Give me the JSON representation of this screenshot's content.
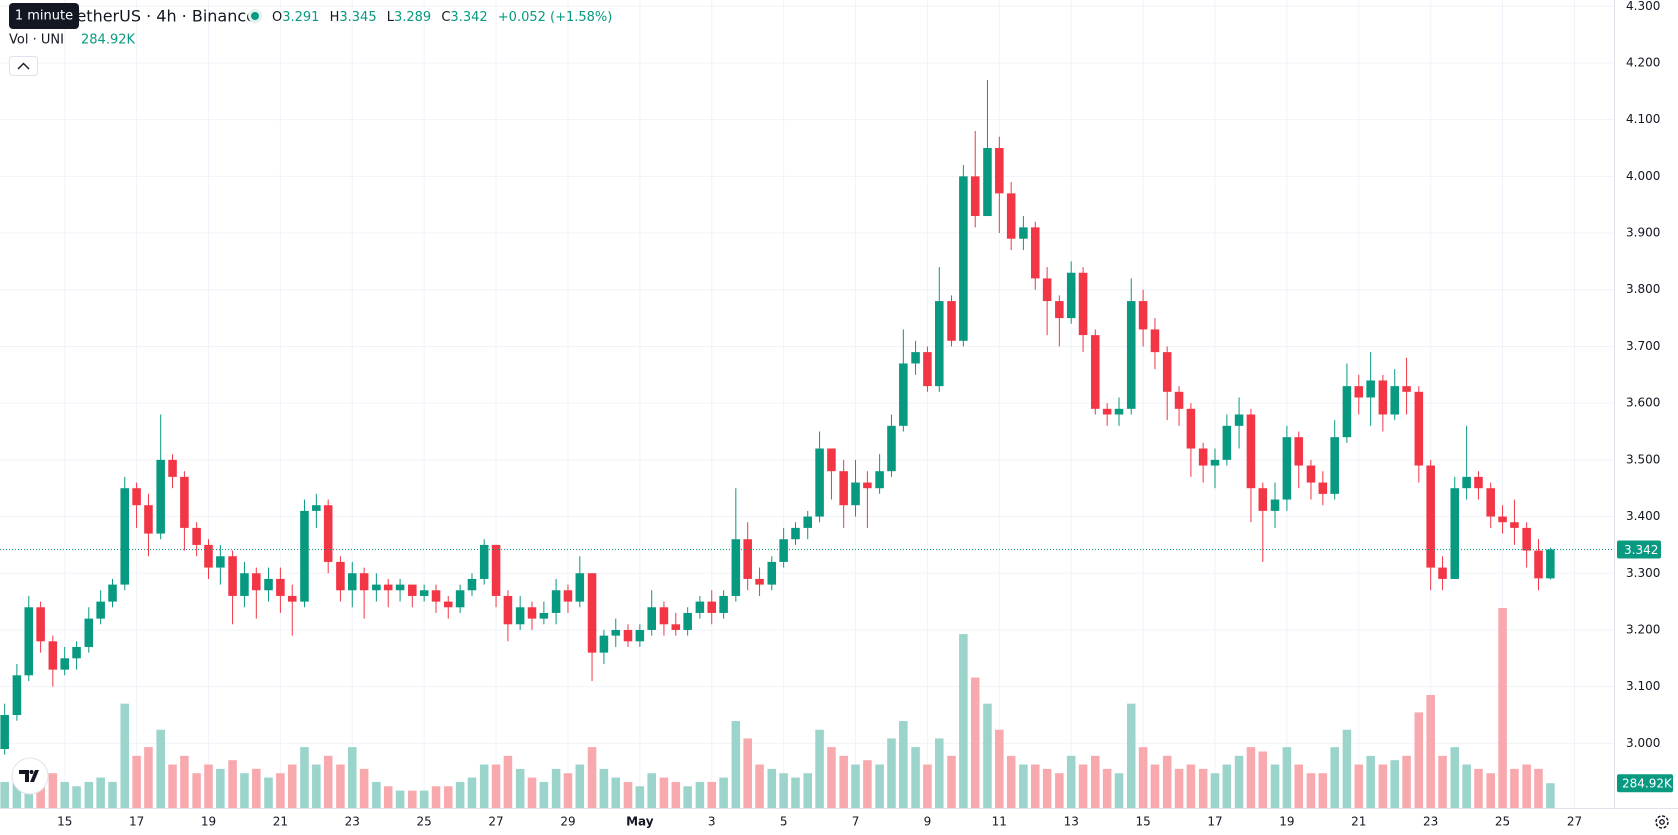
{
  "chart_data": {
    "type": "candlestick",
    "symbol": "UNITetherUS · 4h · Binance",
    "tooltip": "1 minute",
    "ohlc_labels": [
      "O",
      "H",
      "L",
      "C"
    ],
    "change_label": "+0.052 (+1.58%)",
    "volume_title": "Vol · UNI",
    "volume_label": "284.92K",
    "colors": {
      "up": "#089981",
      "down": "#f23645",
      "volume_up": "#9bd4cb",
      "volume_down": "#f7a9ae"
    },
    "grid": true,
    "xlim": [
      13.2,
      58.1
    ],
    "xticks": [
      15,
      17,
      19,
      21,
      23,
      25,
      27,
      29,
      {
        "value": 31,
        "label": "May"
      },
      {
        "value": 33,
        "label": "3"
      },
      {
        "value": 35,
        "label": "5"
      },
      {
        "value": 37,
        "label": "7"
      },
      {
        "value": 39,
        "label": "9"
      },
      {
        "value": 41,
        "label": "11"
      },
      {
        "value": 43,
        "label": "13"
      },
      {
        "value": 45,
        "label": "15"
      },
      {
        "value": 47,
        "label": "17"
      },
      {
        "value": 49,
        "label": "19"
      },
      {
        "value": 51,
        "label": "21"
      },
      {
        "value": 53,
        "label": "23"
      },
      {
        "value": 55,
        "label": "25"
      },
      {
        "value": 57,
        "label": "27"
      }
    ],
    "ylim": [
      2.886,
      4.311
    ],
    "yticks": [
      {
        "value": 3.0,
        "label": "3.000"
      },
      {
        "value": 3.1,
        "label": "3.100"
      },
      {
        "value": 3.2,
        "label": "3.200"
      },
      {
        "value": 3.3,
        "label": "3.300"
      },
      {
        "value": 3.4,
        "label": "3.400"
      },
      {
        "value": 3.5,
        "label": "3.500"
      },
      {
        "value": 3.6,
        "label": "3.600"
      },
      {
        "value": 3.7,
        "label": "3.700"
      },
      {
        "value": 3.8,
        "label": "3.800"
      },
      {
        "value": 3.9,
        "label": "3.900"
      },
      {
        "value": 4.0,
        "label": "4.000"
      },
      {
        "value": 4.1,
        "label": "4.100"
      },
      {
        "value": 4.2,
        "label": "4.200"
      },
      {
        "value": 4.3,
        "label": "4.300"
      }
    ],
    "x": [
      13.33,
      13.67,
      14,
      14.33,
      14.67,
      15,
      15.33,
      15.67,
      16,
      16.33,
      16.67,
      17,
      17.33,
      17.67,
      18,
      18.33,
      18.67,
      19,
      19.33,
      19.67,
      20,
      20.33,
      20.67,
      21,
      21.33,
      21.67,
      22,
      22.33,
      22.67,
      23,
      23.33,
      23.67,
      24,
      24.33,
      24.67,
      25,
      25.33,
      25.67,
      26,
      26.33,
      26.67,
      27,
      27.33,
      27.67,
      28,
      28.33,
      28.67,
      29,
      29.33,
      29.67,
      30,
      30.33,
      30.67,
      31,
      31.33,
      31.67,
      32,
      32.33,
      32.67,
      33,
      33.33,
      33.67,
      34,
      34.33,
      34.67,
      35,
      35.33,
      35.67,
      36,
      36.33,
      36.67,
      37,
      37.33,
      37.67,
      38,
      38.33,
      38.67,
      39,
      39.33,
      39.67,
      40,
      40.33,
      40.67,
      41,
      41.33,
      41.67,
      42,
      42.33,
      42.67,
      43,
      43.33,
      43.67,
      44,
      44.33,
      44.67,
      45,
      45.33,
      45.67,
      46,
      46.33,
      46.67,
      47,
      47.33,
      47.67,
      48,
      48.33,
      48.67,
      49,
      49.33,
      49.67,
      50,
      50.33,
      50.67,
      51,
      51.33,
      51.67,
      52,
      52.33,
      52.67,
      53,
      53.33,
      53.67,
      54,
      54.33,
      54.67,
      55,
      55.33,
      55.67,
      56,
      56.33
    ],
    "open": [
      2.99,
      3.05,
      3.12,
      3.24,
      3.18,
      3.13,
      3.15,
      3.17,
      3.22,
      3.25,
      3.28,
      3.45,
      3.42,
      3.37,
      3.5,
      3.47,
      3.38,
      3.35,
      3.31,
      3.33,
      3.26,
      3.3,
      3.27,
      3.29,
      3.26,
      3.25,
      3.41,
      3.42,
      3.32,
      3.27,
      3.3,
      3.27,
      3.28,
      3.27,
      3.28,
      3.26,
      3.27,
      3.25,
      3.24,
      3.27,
      3.29,
      3.35,
      3.26,
      3.21,
      3.24,
      3.22,
      3.23,
      3.27,
      3.25,
      3.3,
      3.16,
      3.19,
      3.2,
      3.18,
      3.2,
      3.24,
      3.21,
      3.2,
      3.23,
      3.25,
      3.23,
      3.26,
      3.36,
      3.29,
      3.28,
      3.32,
      3.36,
      3.38,
      3.4,
      3.52,
      3.48,
      3.42,
      3.46,
      3.45,
      3.48,
      3.56,
      3.67,
      3.69,
      3.63,
      3.78,
      3.71,
      4.0,
      3.93,
      4.05,
      3.97,
      3.89,
      3.91,
      3.82,
      3.78,
      3.75,
      3.83,
      3.72,
      3.59,
      3.58,
      3.59,
      3.78,
      3.73,
      3.69,
      3.62,
      3.59,
      3.52,
      3.49,
      3.5,
      3.56,
      3.58,
      3.45,
      3.41,
      3.43,
      3.54,
      3.49,
      3.46,
      3.44,
      3.54,
      3.63,
      3.61,
      3.64,
      3.58,
      3.63,
      3.62,
      3.49,
      3.31,
      3.29,
      3.45,
      3.47,
      3.45,
      3.4,
      3.39,
      3.38,
      3.34,
      3.291
    ],
    "high": [
      3.07,
      3.14,
      3.26,
      3.25,
      3.19,
      3.17,
      3.18,
      3.24,
      3.27,
      3.29,
      3.47,
      3.46,
      3.44,
      3.58,
      3.51,
      3.48,
      3.39,
      3.36,
      3.35,
      3.34,
      3.32,
      3.31,
      3.31,
      3.31,
      3.28,
      3.43,
      3.44,
      3.43,
      3.33,
      3.32,
      3.31,
      3.3,
      3.29,
      3.29,
      3.28,
      3.28,
      3.28,
      3.26,
      3.28,
      3.3,
      3.36,
      3.35,
      3.27,
      3.26,
      3.25,
      3.25,
      3.29,
      3.28,
      3.33,
      3.3,
      3.2,
      3.22,
      3.21,
      3.21,
      3.27,
      3.25,
      3.23,
      3.24,
      3.26,
      3.27,
      3.27,
      3.45,
      3.39,
      3.31,
      3.33,
      3.38,
      3.39,
      3.41,
      3.55,
      3.52,
      3.5,
      3.5,
      3.48,
      3.51,
      3.58,
      3.73,
      3.71,
      3.7,
      3.84,
      3.79,
      4.02,
      4.08,
      4.17,
      4.07,
      3.99,
      3.93,
      3.92,
      3.84,
      3.79,
      3.85,
      3.84,
      3.73,
      3.6,
      3.61,
      3.82,
      3.8,
      3.75,
      3.7,
      3.63,
      3.6,
      3.53,
      3.52,
      3.58,
      3.61,
      3.59,
      3.46,
      3.46,
      3.56,
      3.55,
      3.5,
      3.48,
      3.57,
      3.67,
      3.65,
      3.69,
      3.65,
      3.66,
      3.68,
      3.63,
      3.5,
      3.33,
      3.47,
      3.56,
      3.48,
      3.46,
      3.42,
      3.43,
      3.39,
      3.36,
      3.345
    ],
    "low": [
      2.98,
      3.04,
      3.11,
      3.16,
      3.1,
      3.12,
      3.13,
      3.16,
      3.21,
      3.24,
      3.27,
      3.38,
      3.33,
      3.36,
      3.45,
      3.34,
      3.33,
      3.29,
      3.28,
      3.21,
      3.24,
      3.22,
      3.25,
      3.23,
      3.19,
      3.24,
      3.38,
      3.3,
      3.25,
      3.24,
      3.22,
      3.25,
      3.24,
      3.25,
      3.24,
      3.25,
      3.23,
      3.22,
      3.23,
      3.26,
      3.28,
      3.24,
      3.18,
      3.2,
      3.2,
      3.21,
      3.21,
      3.23,
      3.24,
      3.11,
      3.14,
      3.17,
      3.17,
      3.17,
      3.19,
      3.19,
      3.19,
      3.19,
      3.22,
      3.21,
      3.22,
      3.25,
      3.27,
      3.26,
      3.27,
      3.31,
      3.35,
      3.36,
      3.39,
      3.43,
      3.38,
      3.4,
      3.38,
      3.44,
      3.47,
      3.55,
      3.65,
      3.62,
      3.62,
      3.7,
      3.7,
      3.91,
      3.93,
      3.9,
      3.87,
      3.87,
      3.8,
      3.72,
      3.7,
      3.74,
      3.69,
      3.58,
      3.56,
      3.56,
      3.58,
      3.7,
      3.66,
      3.57,
      3.56,
      3.47,
      3.46,
      3.45,
      3.49,
      3.52,
      3.39,
      3.32,
      3.38,
      3.41,
      3.45,
      3.43,
      3.42,
      3.43,
      3.53,
      3.58,
      3.56,
      3.55,
      3.57,
      3.58,
      3.46,
      3.27,
      3.27,
      3.29,
      3.43,
      3.43,
      3.38,
      3.37,
      3.35,
      3.31,
      3.27,
      3.289
    ],
    "close": [
      3.05,
      3.12,
      3.24,
      3.18,
      3.13,
      3.15,
      3.17,
      3.22,
      3.25,
      3.28,
      3.45,
      3.42,
      3.37,
      3.5,
      3.47,
      3.38,
      3.35,
      3.31,
      3.33,
      3.26,
      3.3,
      3.27,
      3.29,
      3.26,
      3.25,
      3.41,
      3.42,
      3.32,
      3.27,
      3.3,
      3.27,
      3.28,
      3.27,
      3.28,
      3.26,
      3.27,
      3.25,
      3.24,
      3.27,
      3.29,
      3.35,
      3.26,
      3.21,
      3.24,
      3.22,
      3.23,
      3.27,
      3.25,
      3.3,
      3.16,
      3.19,
      3.2,
      3.18,
      3.2,
      3.24,
      3.21,
      3.2,
      3.23,
      3.25,
      3.23,
      3.26,
      3.36,
      3.29,
      3.28,
      3.32,
      3.36,
      3.38,
      3.4,
      3.52,
      3.48,
      3.42,
      3.46,
      3.45,
      3.48,
      3.56,
      3.67,
      3.69,
      3.63,
      3.78,
      3.71,
      4.0,
      3.93,
      4.05,
      3.97,
      3.89,
      3.91,
      3.82,
      3.78,
      3.75,
      3.83,
      3.72,
      3.59,
      3.58,
      3.59,
      3.78,
      3.73,
      3.69,
      3.62,
      3.59,
      3.52,
      3.49,
      3.5,
      3.56,
      3.58,
      3.45,
      3.41,
      3.43,
      3.54,
      3.49,
      3.46,
      3.44,
      3.54,
      3.63,
      3.61,
      3.64,
      3.58,
      3.63,
      3.62,
      3.49,
      3.31,
      3.29,
      3.45,
      3.47,
      3.45,
      3.4,
      3.39,
      3.38,
      3.34,
      3.291,
      3.342
    ],
    "volume": [
      300,
      350,
      400,
      350,
      400,
      300,
      250,
      300,
      350,
      300,
      1200,
      600,
      700,
      900,
      500,
      600,
      400,
      500,
      450,
      550,
      400,
      450,
      350,
      400,
      500,
      700,
      500,
      600,
      500,
      700,
      450,
      300,
      250,
      200,
      200,
      200,
      250,
      250,
      300,
      350,
      500,
      500,
      600,
      450,
      350,
      300,
      450,
      400,
      500,
      700,
      450,
      350,
      300,
      250,
      400,
      350,
      300,
      250,
      300,
      300,
      350,
      1000,
      800,
      500,
      450,
      400,
      350,
      400,
      900,
      700,
      600,
      500,
      550,
      500,
      800,
      1000,
      700,
      500,
      800,
      600,
      2000,
      1500,
      1200,
      900,
      600,
      500,
      500,
      450,
      400,
      600,
      500,
      600,
      450,
      400,
      1200,
      700,
      500,
      600,
      450,
      500,
      450,
      400,
      500,
      600,
      700,
      650,
      500,
      700,
      500,
      400,
      400,
      700,
      900,
      500,
      600,
      500,
      550,
      600,
      1100,
      1300,
      600,
      700,
      500,
      450,
      400,
      2300,
      450,
      500,
      450,
      284.92
    ]
  }
}
